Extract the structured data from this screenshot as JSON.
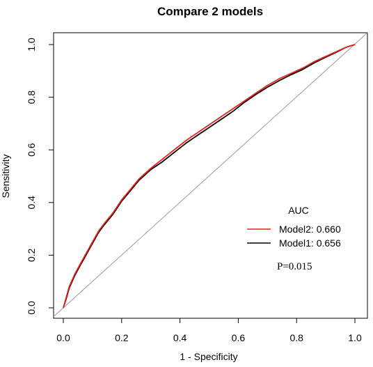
{
  "chart_data": {
    "type": "line",
    "title": "Compare 2 models",
    "xlabel": "1 - Specificity",
    "ylabel": "Sensitivity",
    "xlim": [
      0.0,
      1.0
    ],
    "ylim": [
      0.0,
      1.0
    ],
    "xticks": [
      "0.0",
      "0.2",
      "0.4",
      "0.6",
      "0.8",
      "1.0"
    ],
    "yticks": [
      "0.0",
      "0.2",
      "0.4",
      "0.6",
      "0.8",
      "1.0"
    ],
    "grid": false,
    "legend_title": "AUC",
    "legend_position": "bottom-right",
    "annotation": "P=0.015",
    "reference_line": {
      "x": [
        0.0,
        1.0
      ],
      "y": [
        0.0,
        1.0
      ],
      "color": "#999999"
    },
    "series": [
      {
        "name": "Model2: 0.660",
        "color": "#e8211d",
        "x": [
          0.0,
          0.01,
          0.02,
          0.04,
          0.06,
          0.08,
          0.1,
          0.12,
          0.14,
          0.17,
          0.2,
          0.23,
          0.26,
          0.3,
          0.34,
          0.38,
          0.42,
          0.46,
          0.5,
          0.54,
          0.58,
          0.62,
          0.66,
          0.7,
          0.74,
          0.78,
          0.82,
          0.86,
          0.9,
          0.94,
          0.97,
          1.0
        ],
        "y": [
          0.0,
          0.04,
          0.08,
          0.13,
          0.17,
          0.21,
          0.25,
          0.29,
          0.32,
          0.36,
          0.41,
          0.45,
          0.49,
          0.53,
          0.565,
          0.6,
          0.635,
          0.665,
          0.695,
          0.725,
          0.755,
          0.785,
          0.815,
          0.845,
          0.87,
          0.89,
          0.91,
          0.935,
          0.955,
          0.975,
          0.99,
          1.0
        ]
      },
      {
        "name": "Model1: 0.656",
        "color": "#000000",
        "x": [
          0.0,
          0.01,
          0.02,
          0.04,
          0.06,
          0.08,
          0.1,
          0.12,
          0.14,
          0.17,
          0.2,
          0.23,
          0.26,
          0.3,
          0.34,
          0.38,
          0.42,
          0.46,
          0.5,
          0.54,
          0.58,
          0.62,
          0.66,
          0.7,
          0.74,
          0.78,
          0.82,
          0.86,
          0.9,
          0.94,
          0.97,
          1.0
        ],
        "y": [
          0.0,
          0.035,
          0.075,
          0.125,
          0.165,
          0.205,
          0.245,
          0.285,
          0.315,
          0.355,
          0.405,
          0.445,
          0.485,
          0.525,
          0.555,
          0.59,
          0.625,
          0.655,
          0.685,
          0.715,
          0.745,
          0.78,
          0.81,
          0.838,
          0.863,
          0.885,
          0.905,
          0.93,
          0.952,
          0.973,
          0.99,
          1.0
        ]
      }
    ]
  }
}
